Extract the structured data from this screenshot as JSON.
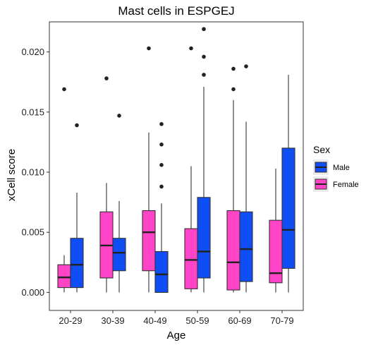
{
  "chart_data": {
    "type": "boxplot",
    "title": "Mast cells in ESPGEJ",
    "xlabel": "Age",
    "ylabel": "xCell score",
    "ylim": [
      -0.0015,
      0.0225
    ],
    "yticks": [
      0.0,
      0.005,
      0.01,
      0.015,
      0.02
    ],
    "ytick_labels": [
      "0.000",
      "0.005",
      "0.010",
      "0.015",
      "0.020"
    ],
    "categories": [
      "20-29",
      "30-39",
      "40-49",
      "50-59",
      "60-69",
      "70-79"
    ],
    "grid": false,
    "legend": {
      "title": "Sex",
      "position": "right"
    },
    "series": [
      {
        "name": "Female",
        "color": "#ff44c8",
        "boxes": [
          {
            "min": 0.0,
            "q1": 0.0004,
            "median": 0.00125,
            "q3": 0.0023,
            "max": 0.0031,
            "outliers": [
              0.0169
            ]
          },
          {
            "min": 0.0,
            "q1": 0.0012,
            "median": 0.0039,
            "q3": 0.0067,
            "max": 0.0091,
            "outliers": [
              0.0178
            ]
          },
          {
            "min": 0.0,
            "q1": 0.0018,
            "median": 0.005,
            "q3": 0.0068,
            "max": 0.0133,
            "outliers": [
              0.0203
            ]
          },
          {
            "min": 0.0,
            "q1": 0.0003,
            "median": 0.0027,
            "q3": 0.0053,
            "max": 0.0105,
            "outliers": [
              0.0203
            ]
          },
          {
            "min": 0.0,
            "q1": 0.0002,
            "median": 0.0025,
            "q3": 0.0068,
            "max": 0.016,
            "outliers": [
              0.0186,
              0.0169
            ]
          },
          {
            "min": 0.0,
            "q1": 0.0008,
            "median": 0.0016,
            "q3": 0.006,
            "max": 0.0103,
            "outliers": []
          }
        ]
      },
      {
        "name": "Male",
        "color": "#0f4ef5",
        "boxes": [
          {
            "min": 0.0,
            "q1": 0.0004,
            "median": 0.0023,
            "q3": 0.0045,
            "max": 0.0083,
            "outliers": [
              0.0139
            ]
          },
          {
            "min": 0.0,
            "q1": 0.0018,
            "median": 0.0033,
            "q3": 0.0045,
            "max": 0.0076,
            "outliers": [
              0.0147
            ]
          },
          {
            "min": 0.0,
            "q1": 0.0,
            "median": 0.0015,
            "q3": 0.0034,
            "max": 0.0074,
            "outliers": [
              0.014,
              0.0123,
              0.0106,
              0.0088
            ]
          },
          {
            "min": 0.0,
            "q1": 0.0012,
            "median": 0.0034,
            "q3": 0.0079,
            "max": 0.0171,
            "outliers": [
              0.0219,
              0.0196,
              0.0181
            ]
          },
          {
            "min": 0.0,
            "q1": 0.0009,
            "median": 0.0036,
            "q3": 0.0067,
            "max": 0.0142,
            "outliers": [
              0.0188
            ]
          },
          {
            "min": 0.0,
            "q1": 0.002,
            "median": 0.0052,
            "q3": 0.012,
            "max": 0.0181,
            "outliers": []
          }
        ]
      }
    ],
    "legend_order": [
      "Male",
      "Female"
    ]
  }
}
